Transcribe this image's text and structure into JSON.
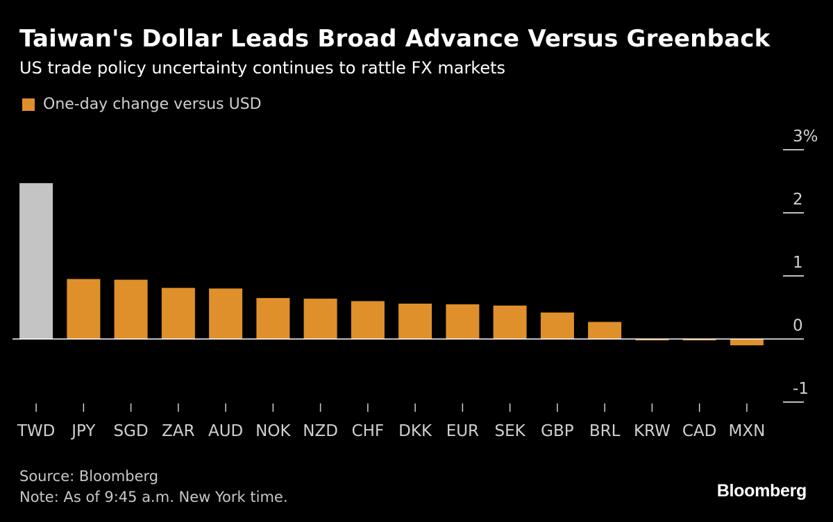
{
  "title": "Taiwan's Dollar Leads Broad Advance Versus Greenback",
  "subtitle": "US trade policy uncertainty continues to rattle FX markets",
  "source": "Source: Bloomberg",
  "note": "Note: As of 9:45 a.m. New York time.",
  "logo": "Bloomberg",
  "colors": {
    "background": "#000000",
    "bar": "#e0902b",
    "highlight_bar": "#c4c4c4",
    "axis": "#ffffff",
    "tick_label": "#d0d0d0"
  },
  "chart_data": {
    "type": "bar",
    "categories": [
      "TWD",
      "JPY",
      "SGD",
      "ZAR",
      "AUD",
      "NOK",
      "NZD",
      "CHF",
      "DKK",
      "EUR",
      "SEK",
      "GBP",
      "BRL",
      "KRW",
      "CAD",
      "MXN"
    ],
    "series": [
      {
        "name": "One-day change versus USD",
        "values": [
          2.47,
          0.95,
          0.94,
          0.81,
          0.8,
          0.65,
          0.64,
          0.6,
          0.56,
          0.55,
          0.53,
          0.42,
          0.27,
          -0.01,
          -0.01,
          -0.1
        ]
      }
    ],
    "highlight_category": "TWD",
    "xlabel": "",
    "ylabel": "",
    "ylim": [
      -1,
      3
    ],
    "yticks": [
      -1,
      0,
      1,
      2,
      3
    ],
    "ytick_labels": [
      "-1",
      "0",
      "1",
      "2",
      "3%"
    ],
    "y_axis_position": "right",
    "legend_position": "top-left",
    "grid": false
  }
}
